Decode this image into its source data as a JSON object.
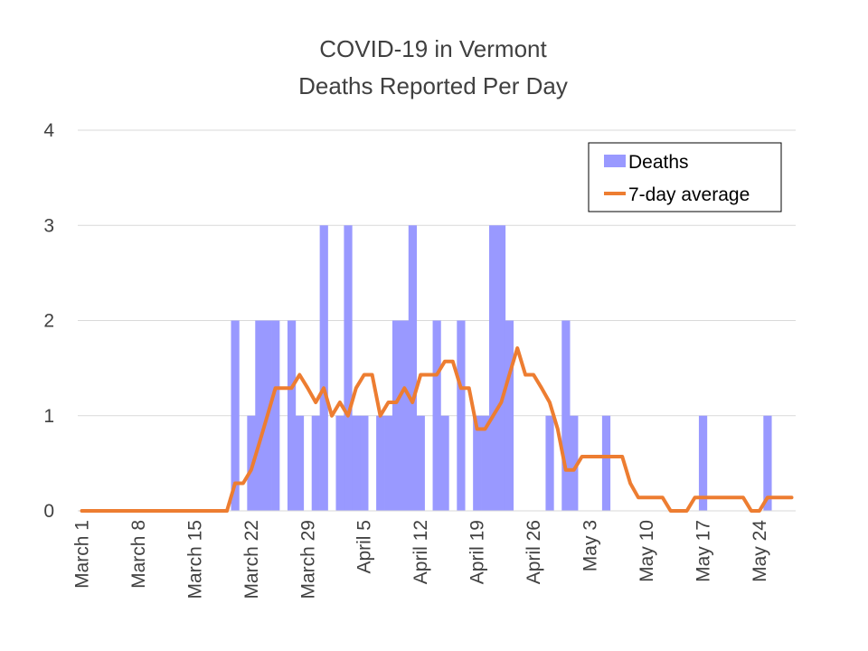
{
  "chart_data": {
    "type": "bar",
    "title": "COVID-19 in Vermont",
    "subtitle": "Deaths Reported Per Day",
    "xlabel": "",
    "ylabel": "",
    "ylim": [
      0,
      4
    ],
    "yticks": [
      "0",
      "1",
      "2",
      "3",
      "4"
    ],
    "grid": true,
    "legend_position": "top-right",
    "start_date": "March 1",
    "end_date": "May 28",
    "x_tick_labels": [
      {
        "label": "March 1",
        "day": 1
      },
      {
        "label": "March 8",
        "day": 8
      },
      {
        "label": "March 15",
        "day": 15
      },
      {
        "label": "March 22",
        "day": 22
      },
      {
        "label": "March 29",
        "day": 29
      },
      {
        "label": "April 5",
        "day": 36
      },
      {
        "label": "April 12",
        "day": 43
      },
      {
        "label": "April 19",
        "day": 50
      },
      {
        "label": "April 26",
        "day": 57
      },
      {
        "label": "May 3",
        "day": 64
      },
      {
        "label": "May 10",
        "day": 71
      },
      {
        "label": "May 17",
        "day": 78
      },
      {
        "label": "May 24",
        "day": 85
      }
    ],
    "series": [
      {
        "name": "Deaths",
        "kind": "bar",
        "color": "#9999ff",
        "values": [
          0,
          0,
          0,
          0,
          0,
          0,
          0,
          0,
          0,
          0,
          0,
          0,
          0,
          0,
          0,
          0,
          0,
          0,
          0,
          2,
          0,
          1,
          2,
          2,
          2,
          0,
          2,
          1,
          0,
          1,
          3,
          0,
          1,
          3,
          1,
          1,
          0,
          1,
          1,
          2,
          2,
          3,
          1,
          0,
          2,
          1,
          0,
          2,
          0,
          1,
          1,
          3,
          3,
          2,
          0,
          0,
          0,
          0,
          1,
          0,
          2,
          1,
          0,
          0,
          0,
          1,
          0,
          0,
          0,
          0,
          0,
          0,
          0,
          0,
          0,
          0,
          0,
          1,
          0,
          0,
          0,
          0,
          0,
          0,
          0,
          1,
          0,
          0,
          0
        ],
        "legend": "Deaths"
      },
      {
        "name": "7-day average",
        "kind": "line",
        "color": "#ed7d31",
        "values": [
          0,
          0,
          0,
          0,
          0,
          0,
          0,
          0,
          0,
          0,
          0,
          0,
          0,
          0,
          0,
          0,
          0,
          0,
          0,
          0.29,
          0.29,
          0.43,
          0.71,
          1.0,
          1.29,
          1.29,
          1.29,
          1.43,
          1.29,
          1.14,
          1.29,
          1.0,
          1.14,
          1.0,
          1.29,
          1.43,
          1.43,
          1.0,
          1.14,
          1.14,
          1.29,
          1.14,
          1.43,
          1.43,
          1.43,
          1.57,
          1.57,
          1.29,
          1.29,
          0.86,
          0.86,
          1.0,
          1.14,
          1.43,
          1.71,
          1.43,
          1.43,
          1.29,
          1.14,
          0.86,
          0.43,
          0.43,
          0.57,
          0.57,
          0.57,
          0.57,
          0.57,
          0.57,
          0.29,
          0.14,
          0.14,
          0.14,
          0.14,
          0,
          0,
          0,
          0.14,
          0.14,
          0.14,
          0.14,
          0.14,
          0.14,
          0.14,
          0,
          0,
          0.14,
          0.14,
          0.14,
          0.14
        ],
        "legend": "7-day average"
      }
    ]
  }
}
